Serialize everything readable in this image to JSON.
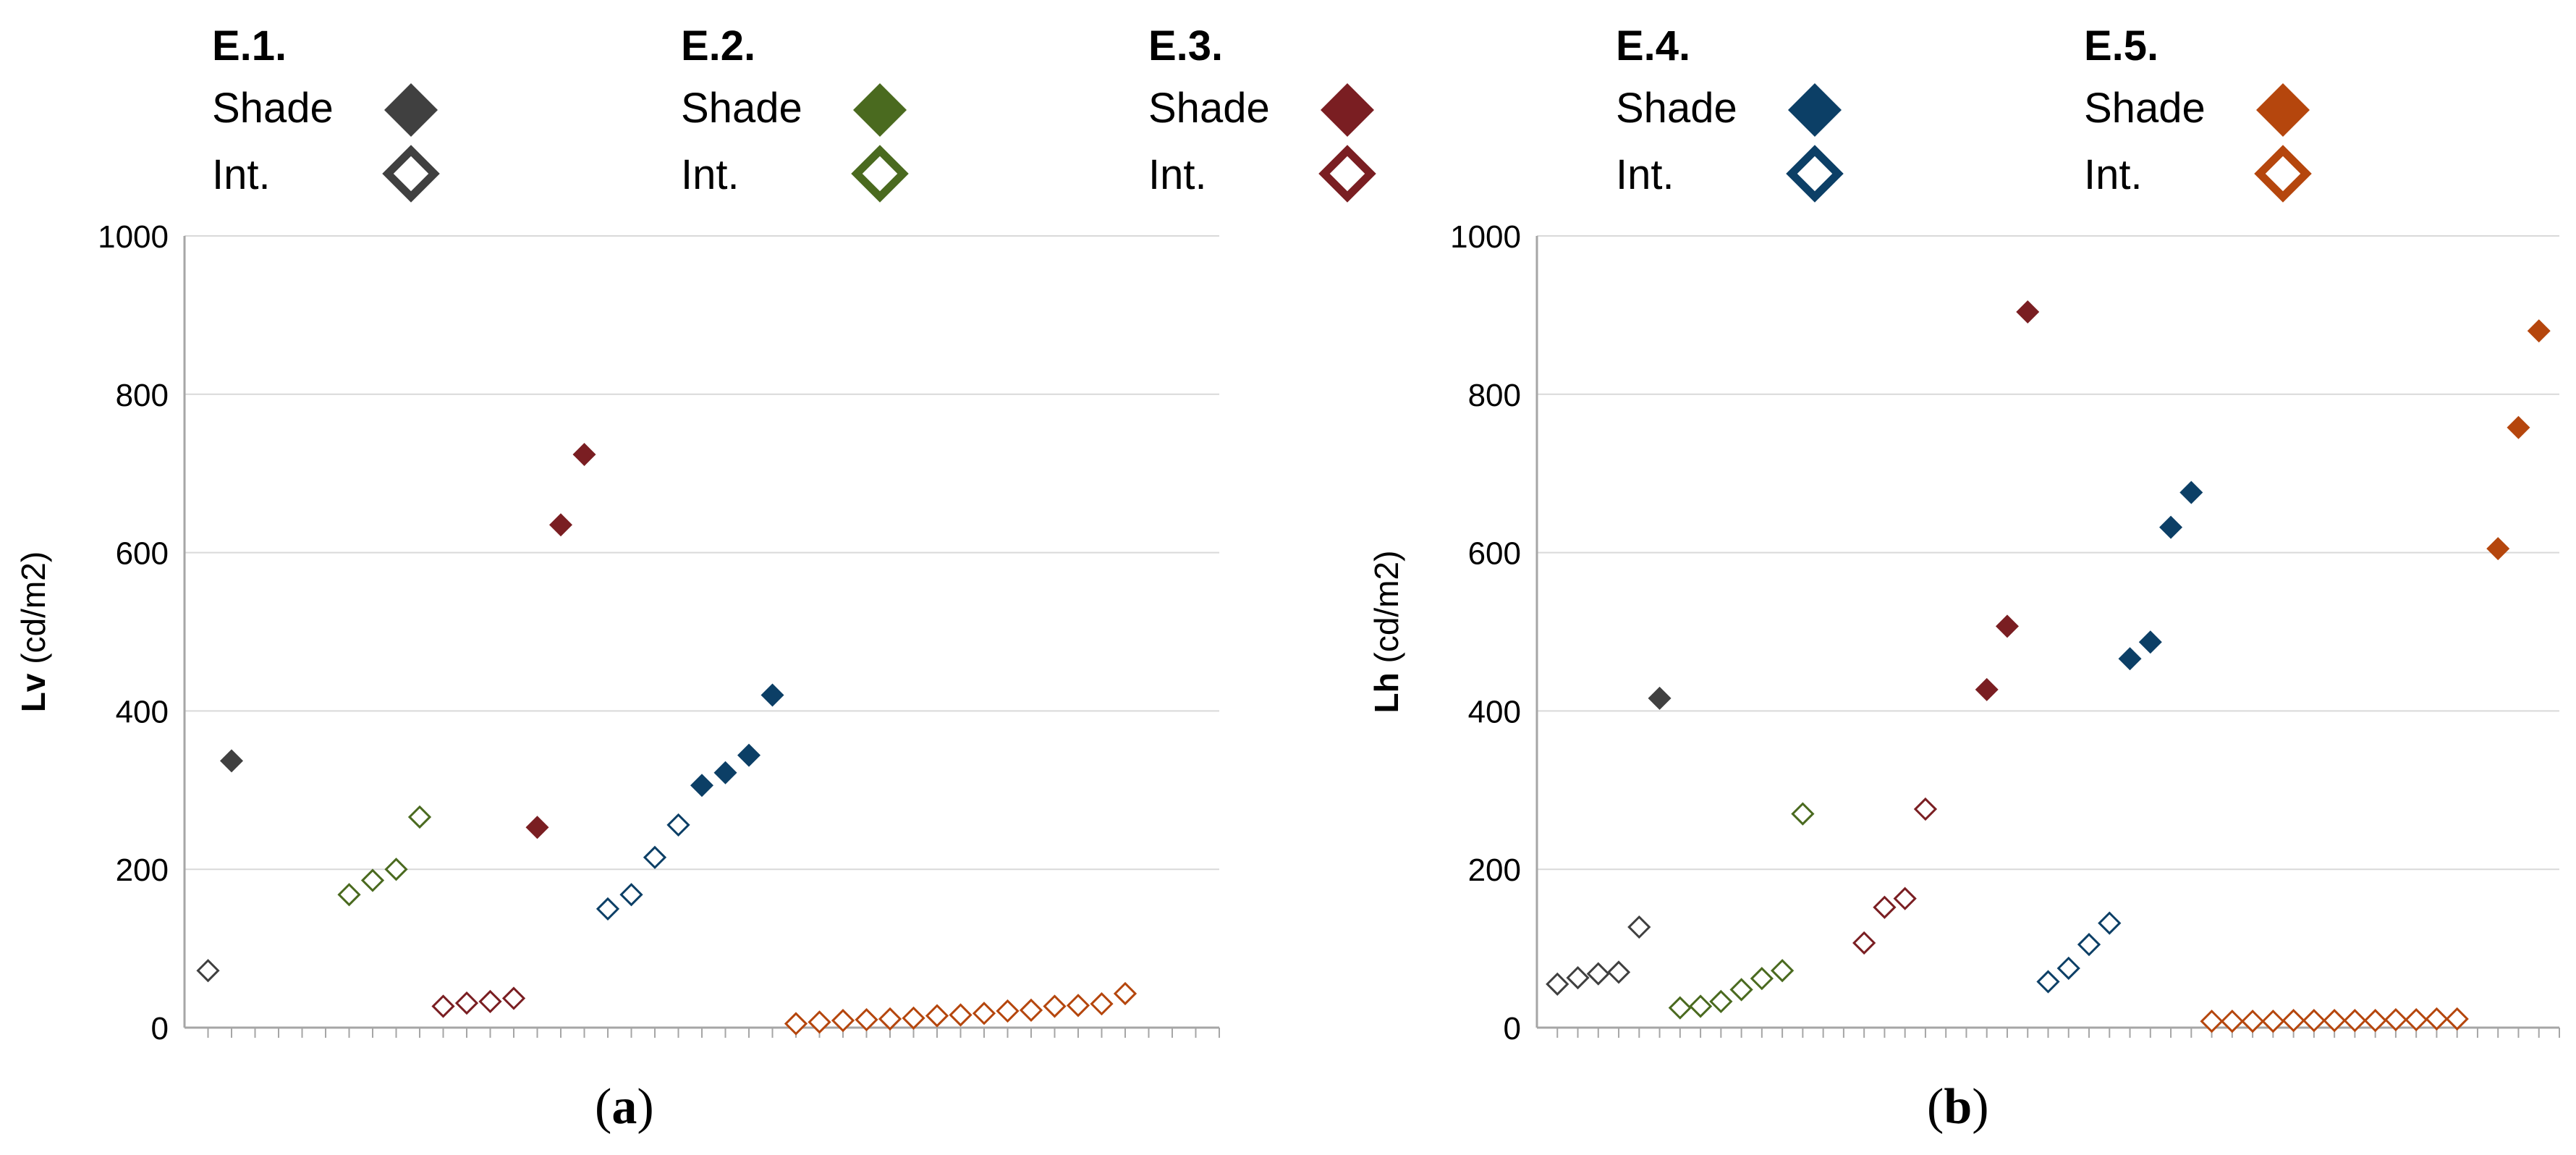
{
  "legend": {
    "groups": [
      {
        "id": "E1",
        "title": "E.1.",
        "shade_label": "Shade",
        "int_label": "Int.",
        "color": "#404040"
      },
      {
        "id": "E2",
        "title": "E.2.",
        "shade_label": "Shade",
        "int_label": "Int.",
        "color": "#4a6a1f"
      },
      {
        "id": "E3",
        "title": "E.3.",
        "shade_label": "Shade",
        "int_label": "Int.",
        "color": "#7a1e22"
      },
      {
        "id": "E4",
        "title": "E.4.",
        "shade_label": "Shade",
        "int_label": "Int.",
        "color": "#0c3f66"
      },
      {
        "id": "E5",
        "title": "E.5.",
        "shade_label": "Shade",
        "int_label": "Int.",
        "color": "#b5460d"
      }
    ]
  },
  "panels": [
    {
      "open": "(",
      "letter": "a",
      "close": ")"
    },
    {
      "open": "(",
      "letter": "b",
      "close": ")"
    }
  ],
  "chart_data": [
    {
      "type": "scatter",
      "title": "",
      "ylabel_bold": "Lv",
      "ylabel_unit": "(cd/m2)",
      "ylim": [
        0,
        1000
      ],
      "yticks": [
        0,
        200,
        400,
        600,
        800,
        1000
      ],
      "y_tick_labels": [
        "0",
        "200",
        "400",
        "600",
        "800",
        "1000"
      ],
      "grid": true,
      "xlim": [
        0,
        44
      ],
      "x_ticks": [
        1,
        2,
        3,
        4,
        5,
        6,
        7,
        8,
        9,
        10,
        11,
        12,
        13,
        14,
        15,
        16,
        17,
        18,
        19,
        20,
        21,
        22,
        23,
        24,
        25,
        26,
        27,
        28,
        29,
        30,
        31,
        32,
        33,
        34,
        35,
        36,
        37,
        38,
        39,
        40,
        41,
        42,
        43,
        44
      ],
      "series": [
        {
          "name": "E.1. Int.",
          "group": "E1",
          "fill": "open",
          "points": [
            {
              "x": 1,
              "y": 72
            }
          ]
        },
        {
          "name": "E.1. Shade",
          "group": "E1",
          "fill": "solid",
          "points": [
            {
              "x": 2,
              "y": 337
            }
          ]
        },
        {
          "name": "E.2. Int.",
          "group": "E2",
          "fill": "open",
          "points": [
            {
              "x": 7,
              "y": 168
            },
            {
              "x": 8,
              "y": 186
            },
            {
              "x": 9,
              "y": 200
            },
            {
              "x": 10,
              "y": 266
            }
          ]
        },
        {
          "name": "E.3. Int.",
          "group": "E3",
          "fill": "open",
          "points": [
            {
              "x": 11,
              "y": 27
            },
            {
              "x": 12,
              "y": 31
            },
            {
              "x": 13,
              "y": 33
            },
            {
              "x": 14,
              "y": 37
            }
          ]
        },
        {
          "name": "E.3. Shade",
          "group": "E3",
          "fill": "solid",
          "points": [
            {
              "x": 15,
              "y": 253
            },
            {
              "x": 16,
              "y": 635
            },
            {
              "x": 17,
              "y": 724
            }
          ]
        },
        {
          "name": "E.4. Int.",
          "group": "E4",
          "fill": "open",
          "points": [
            {
              "x": 18,
              "y": 150
            },
            {
              "x": 19,
              "y": 168
            },
            {
              "x": 20,
              "y": 215
            },
            {
              "x": 21,
              "y": 256
            }
          ]
        },
        {
          "name": "E.4. Shade",
          "group": "E4",
          "fill": "solid",
          "points": [
            {
              "x": 22,
              "y": 306
            },
            {
              "x": 23,
              "y": 322
            },
            {
              "x": 24,
              "y": 344
            },
            {
              "x": 25,
              "y": 420
            }
          ]
        },
        {
          "name": "E.5. Int.",
          "group": "E5",
          "fill": "open",
          "points": [
            {
              "x": 26,
              "y": 5
            },
            {
              "x": 27,
              "y": 7
            },
            {
              "x": 28,
              "y": 9
            },
            {
              "x": 29,
              "y": 10
            },
            {
              "x": 30,
              "y": 11
            },
            {
              "x": 31,
              "y": 12
            },
            {
              "x": 32,
              "y": 15
            },
            {
              "x": 33,
              "y": 16
            },
            {
              "x": 34,
              "y": 18
            },
            {
              "x": 35,
              "y": 21
            },
            {
              "x": 36,
              "y": 22
            },
            {
              "x": 37,
              "y": 27
            },
            {
              "x": 38,
              "y": 28
            },
            {
              "x": 39,
              "y": 30
            },
            {
              "x": 40,
              "y": 43
            }
          ]
        }
      ]
    },
    {
      "type": "scatter",
      "title": "",
      "ylabel_bold": "Lh",
      "ylabel_unit": "(cd/m2)",
      "ylim": [
        0,
        1000
      ],
      "yticks": [
        0,
        200,
        400,
        600,
        800,
        1000
      ],
      "y_tick_labels": [
        "0",
        "200",
        "400",
        "600",
        "800",
        "1000"
      ],
      "grid": true,
      "xlim": [
        0,
        50
      ],
      "x_ticks": [
        1,
        2,
        3,
        4,
        5,
        6,
        7,
        8,
        9,
        10,
        11,
        12,
        13,
        14,
        15,
        16,
        17,
        18,
        19,
        20,
        21,
        22,
        23,
        24,
        25,
        26,
        27,
        28,
        29,
        30,
        31,
        32,
        33,
        34,
        35,
        36,
        37,
        38,
        39,
        40,
        41,
        42,
        43,
        44,
        45,
        46,
        47,
        48,
        49,
        50
      ],
      "series": [
        {
          "name": "E.1. Int.",
          "group": "E1",
          "fill": "open",
          "points": [
            {
              "x": 1,
              "y": 55
            },
            {
              "x": 2,
              "y": 63
            },
            {
              "x": 3,
              "y": 68
            },
            {
              "x": 4,
              "y": 70
            },
            {
              "x": 5,
              "y": 127
            }
          ]
        },
        {
          "name": "E.1. Shade",
          "group": "E1",
          "fill": "solid",
          "points": [
            {
              "x": 6,
              "y": 416
            }
          ]
        },
        {
          "name": "E.2. Int.",
          "group": "E2",
          "fill": "open",
          "points": [
            {
              "x": 7,
              "y": 25
            },
            {
              "x": 8,
              "y": 27
            },
            {
              "x": 9,
              "y": 33
            },
            {
              "x": 10,
              "y": 48
            },
            {
              "x": 11,
              "y": 62
            },
            {
              "x": 12,
              "y": 72
            },
            {
              "x": 13,
              "y": 270
            }
          ]
        },
        {
          "name": "E.3. Int.",
          "group": "E3",
          "fill": "open",
          "points": [
            {
              "x": 16,
              "y": 107
            },
            {
              "x": 17,
              "y": 152
            },
            {
              "x": 18,
              "y": 163
            },
            {
              "x": 19,
              "y": 276
            }
          ]
        },
        {
          "name": "E.3. Shade",
          "group": "E3",
          "fill": "solid",
          "points": [
            {
              "x": 22,
              "y": 427
            },
            {
              "x": 23,
              "y": 507
            },
            {
              "x": 24,
              "y": 904
            }
          ]
        },
        {
          "name": "E.4. Int.",
          "group": "E4",
          "fill": "open",
          "points": [
            {
              "x": 25,
              "y": 58
            },
            {
              "x": 26,
              "y": 75
            },
            {
              "x": 27,
              "y": 105
            },
            {
              "x": 28,
              "y": 132
            }
          ]
        },
        {
          "name": "E.4. Shade",
          "group": "E4",
          "fill": "solid",
          "points": [
            {
              "x": 29,
              "y": 466
            },
            {
              "x": 30,
              "y": 487
            },
            {
              "x": 31,
              "y": 632
            },
            {
              "x": 32,
              "y": 676
            }
          ]
        },
        {
          "name": "E.5. Int.",
          "group": "E5",
          "fill": "open",
          "points": [
            {
              "x": 33,
              "y": 8
            },
            {
              "x": 34,
              "y": 8
            },
            {
              "x": 35,
              "y": 8
            },
            {
              "x": 36,
              "y": 8
            },
            {
              "x": 37,
              "y": 9
            },
            {
              "x": 38,
              "y": 9
            },
            {
              "x": 39,
              "y": 9
            },
            {
              "x": 40,
              "y": 9
            },
            {
              "x": 41,
              "y": 9
            },
            {
              "x": 42,
              "y": 10
            },
            {
              "x": 43,
              "y": 10
            },
            {
              "x": 44,
              "y": 11
            },
            {
              "x": 45,
              "y": 11
            }
          ]
        },
        {
          "name": "E.5. Shade",
          "group": "E5",
          "fill": "solid",
          "points": [
            {
              "x": 47,
              "y": 605
            },
            {
              "x": 48,
              "y": 758
            },
            {
              "x": 49,
              "y": 880
            }
          ]
        }
      ]
    }
  ]
}
